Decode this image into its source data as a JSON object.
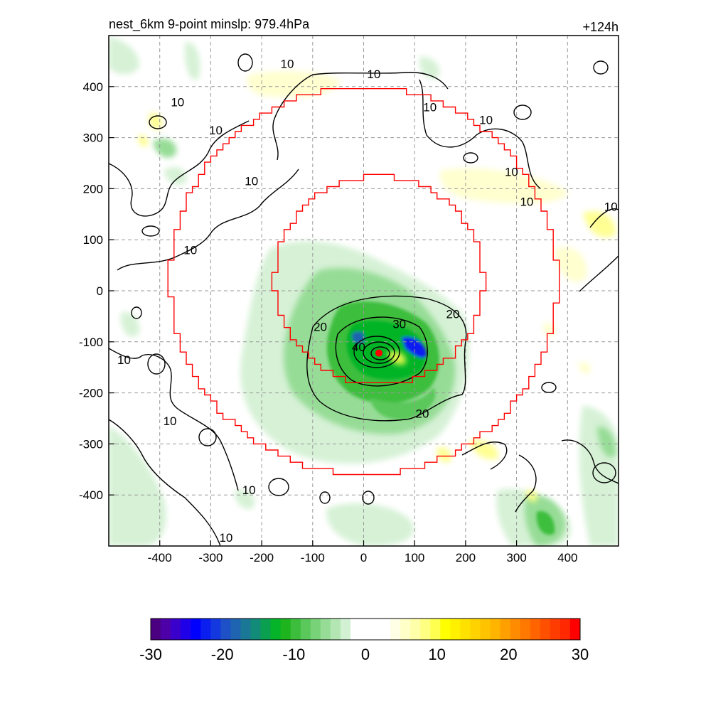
{
  "header": {
    "left_title": "nest_6km  9-point minslp: 979.4hPa",
    "right_title": "+124h"
  },
  "chart_data": {
    "type": "heatmap",
    "title": "nest_6km  9-point minslp: 979.4hPa",
    "time_label": "+124h",
    "xlim": [
      -500,
      500
    ],
    "ylim": [
      -500,
      500
    ],
    "xticks": [
      -400,
      -300,
      -200,
      -100,
      0,
      100,
      200,
      300,
      400
    ],
    "yticks": [
      -400,
      -300,
      -200,
      -100,
      0,
      100,
      200,
      300,
      400
    ],
    "grid": true,
    "storm_center": [
      30,
      -122
    ],
    "contour_labels": [
      {
        "text": "10",
        "x": 20,
        "y": 425
      },
      {
        "text": "10",
        "x": 130,
        "y": 360
      },
      {
        "text": "10",
        "x": 240,
        "y": 335
      },
      {
        "text": "10",
        "x": -365,
        "y": 370
      },
      {
        "text": "10",
        "x": -290,
        "y": 315
      },
      {
        "text": "10",
        "x": -220,
        "y": 215
      },
      {
        "text": "10",
        "x": -150,
        "y": 445
      },
      {
        "text": "10",
        "x": -340,
        "y": 80
      },
      {
        "text": "10",
        "x": 320,
        "y": 175
      },
      {
        "text": "10",
        "x": 290,
        "y": 233
      },
      {
        "text": "10",
        "x": 485,
        "y": 165
      },
      {
        "text": "10",
        "x": -470,
        "y": -135
      },
      {
        "text": "10",
        "x": -380,
        "y": -255
      },
      {
        "text": "10",
        "x": -225,
        "y": -390
      },
      {
        "text": "10",
        "x": -270,
        "y": -483
      },
      {
        "text": "20",
        "x": -85,
        "y": -70
      },
      {
        "text": "20",
        "x": 175,
        "y": -45
      },
      {
        "text": "20",
        "x": 115,
        "y": -240
      },
      {
        "text": "30",
        "x": 70,
        "y": -65
      },
      {
        "text": "40",
        "x": -10,
        "y": -110
      }
    ],
    "colorbar": {
      "ticks": [
        -30,
        -20,
        -10,
        0,
        10,
        20,
        30
      ],
      "colors": [
        "#4b0082",
        "#4d00a8",
        "#3a00cc",
        "#2000e8",
        "#0000ff",
        "#0a1ef0",
        "#1438e0",
        "#1e50c8",
        "#1e64b0",
        "#1a7896",
        "#128c78",
        "#0aa050",
        "#05b428",
        "#1eb41e",
        "#3cbe3c",
        "#5ac85a",
        "#78d278",
        "#96dc96",
        "#b4e6b4",
        "#d2f0d2",
        "#ffffff",
        "#ffffff",
        "#ffffff",
        "#ffffff",
        "#ffffe6",
        "#ffffc8",
        "#ffffaa",
        "#ffff82",
        "#ffff50",
        "#ffff00",
        "#fff000",
        "#ffe100",
        "#ffd200",
        "#ffc300",
        "#ffb400",
        "#ffa000",
        "#ff8c00",
        "#ff7800",
        "#ff6400",
        "#ff5000",
        "#ff3c00",
        "#ff2800",
        "#ff0000"
      ]
    }
  },
  "colors": {
    "boundary": "#ff0000",
    "contour": "#000000",
    "grid": "#999999",
    "green_light": "#d2f0d2",
    "green_mid": "#96dc96",
    "green_dark": "#3cbe3c",
    "green_deep": "#05b428",
    "blue": "#0a1ef0",
    "yellow": "#ffffaa",
    "center": "#ff0000"
  }
}
